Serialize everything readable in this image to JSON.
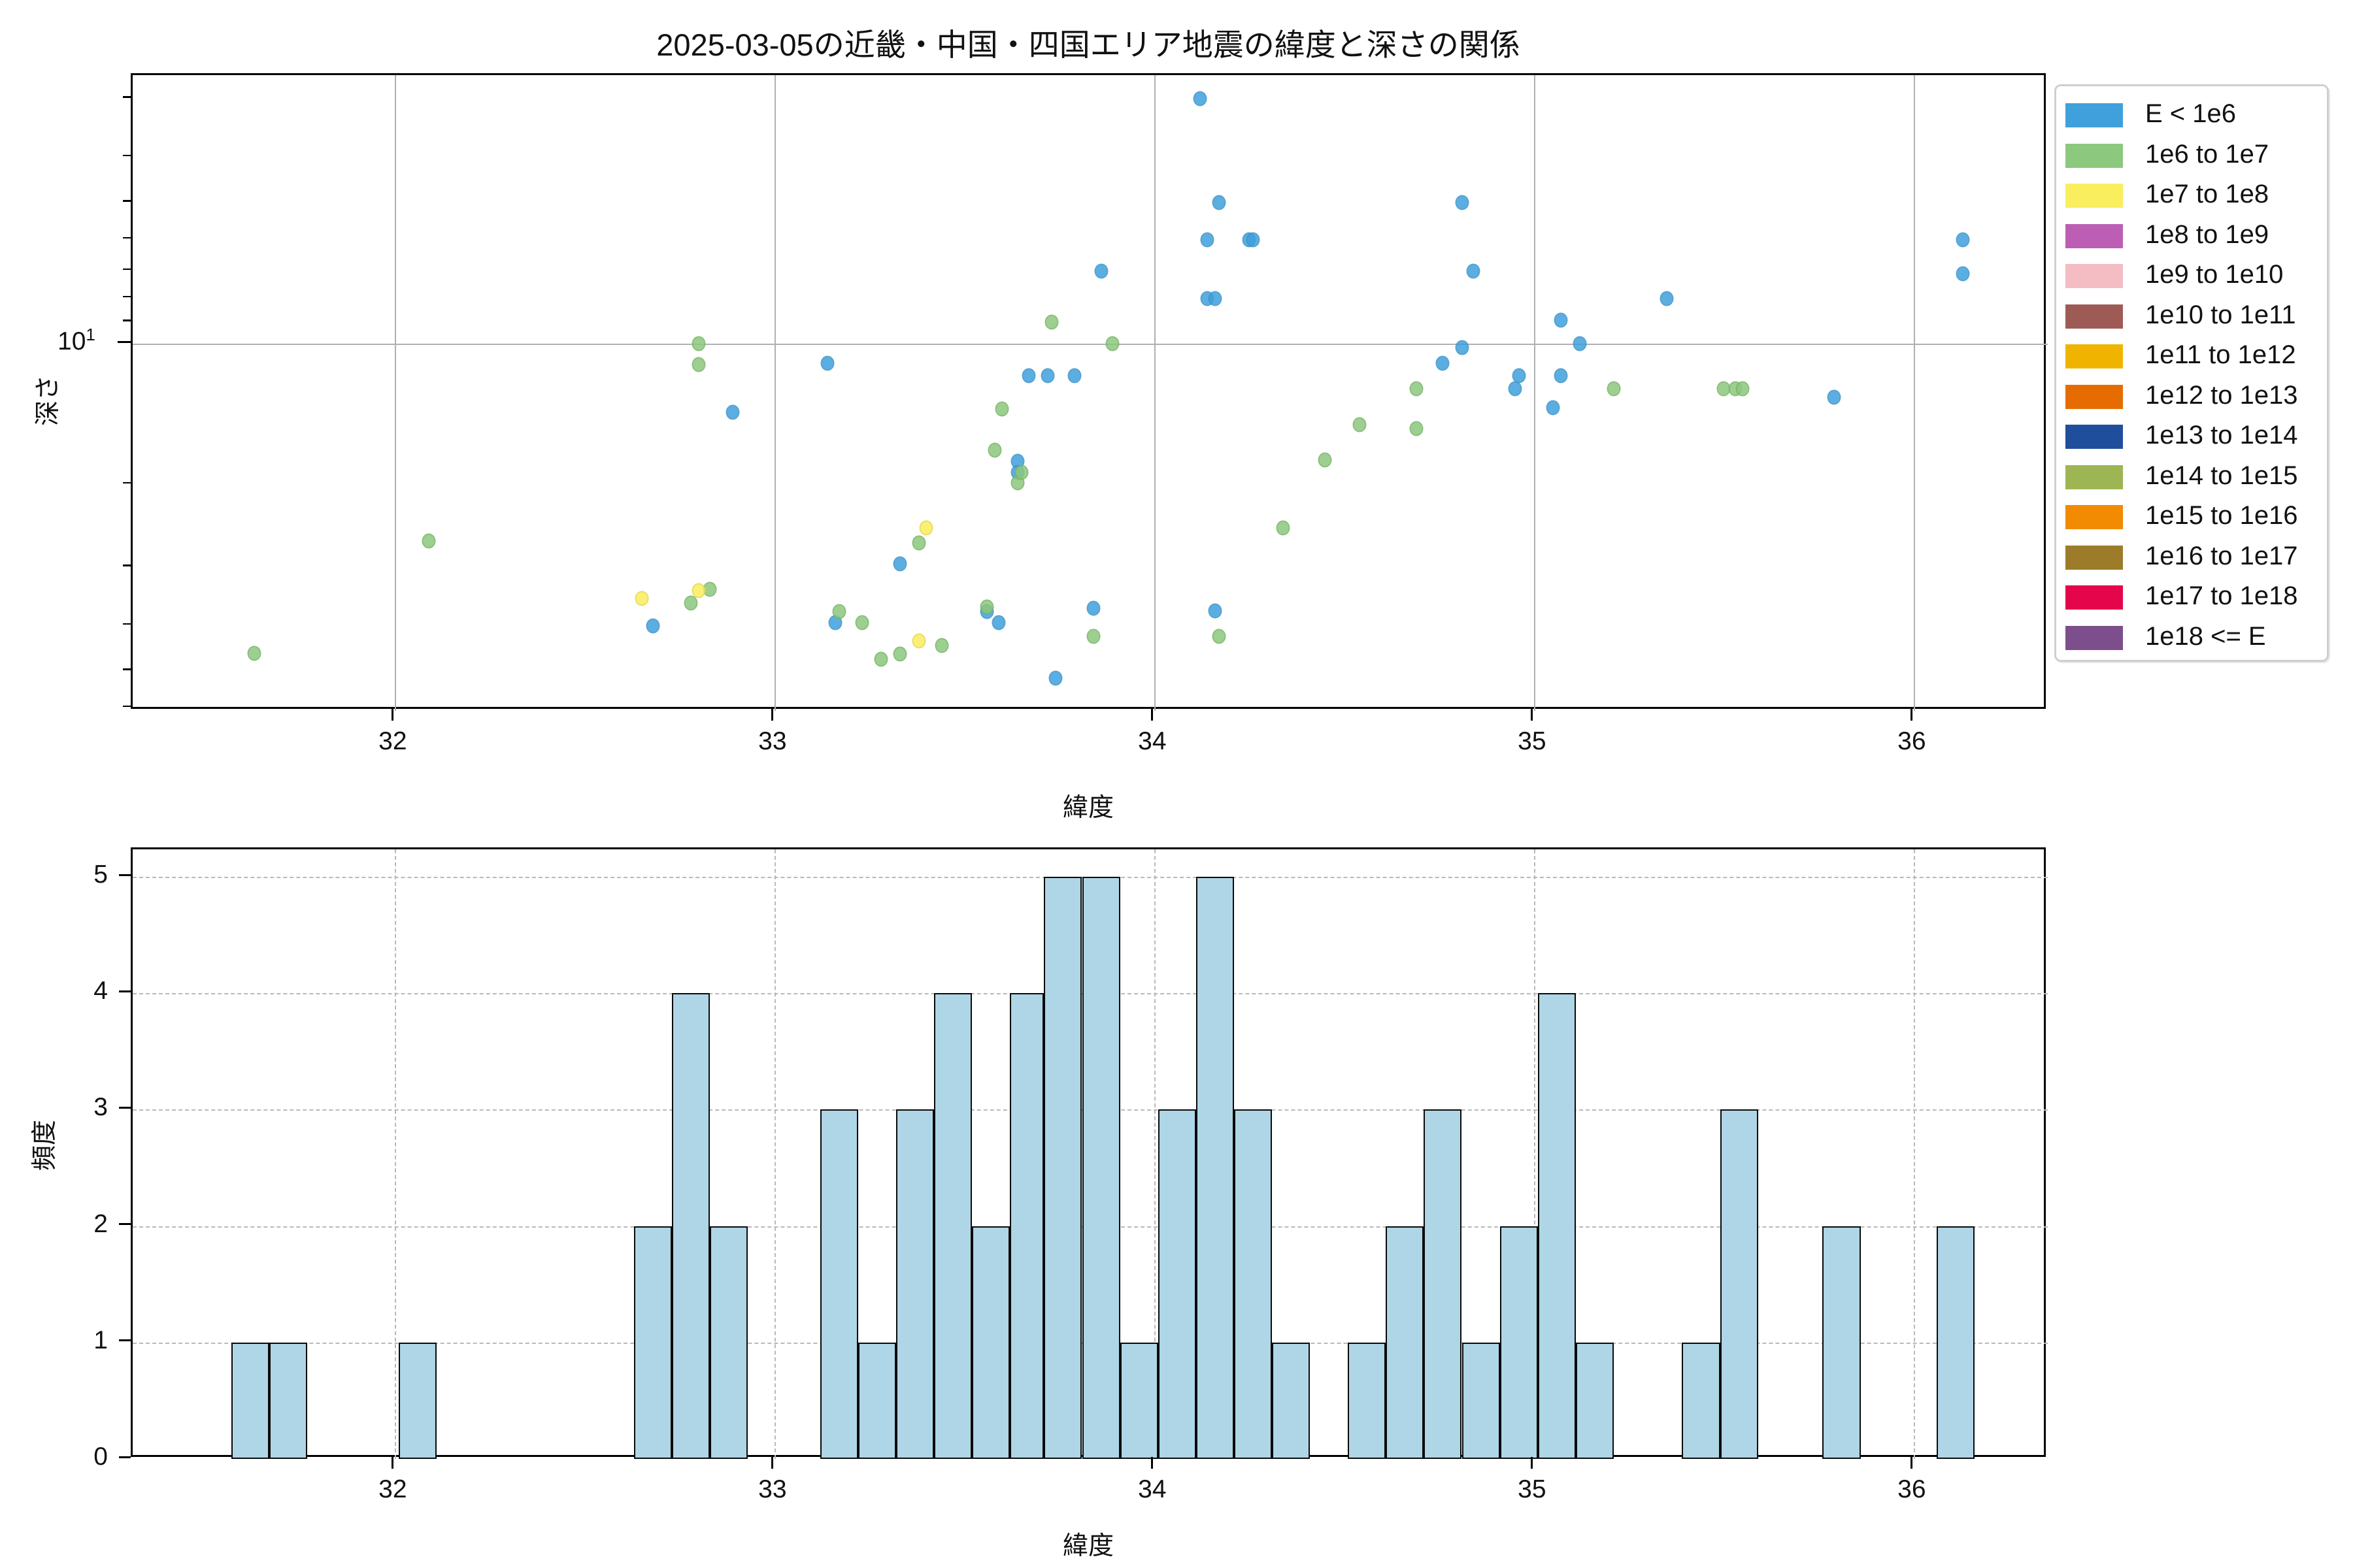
{
  "figure": {
    "title": "2025-03-05の近畿・中国・四国エリア地震の緯度と深さの関係"
  },
  "legend": {
    "entries": [
      {
        "label": "E < 1e6",
        "color": "#3FA0DC"
      },
      {
        "label": "1e6 to 1e7",
        "color": "#8CC87D"
      },
      {
        "label": "1e7 to 1e8",
        "color": "#F9EE5E"
      },
      {
        "label": "1e8 to 1e9",
        "color": "#BC5FB4"
      },
      {
        "label": "1e9 to 1e10",
        "color": "#F4BDC3"
      },
      {
        "label": "1e10 to 1e11",
        "color": "#9E5B55"
      },
      {
        "label": "1e11 to 1e12",
        "color": "#F0B400"
      },
      {
        "label": "1e12 to 1e13",
        "color": "#E66C02"
      },
      {
        "label": "1e13 to 1e14",
        "color": "#1F4E9C"
      },
      {
        "label": "1e14 to 1e15",
        "color": "#9EB554"
      },
      {
        "label": "1e15 to 1e16",
        "color": "#F28A02"
      },
      {
        "label": "1e16 to 1e17",
        "color": "#9C7C29"
      },
      {
        "label": "1e17 to 1e18",
        "color": "#E5054A"
      },
      {
        "label": "1e18 <= E",
        "color": "#7D4E8C"
      }
    ]
  },
  "chart_data": [
    {
      "type": "scatter",
      "title": "2025-03-05の近畿・中国・四国エリア地震の緯度と深さの関係",
      "xlabel": "緯度",
      "ylabel": "深さ",
      "yscale": "log",
      "y_inverted": true,
      "xticks": [
        32,
        33,
        34,
        35,
        36
      ],
      "xlim": [
        31.31,
        36.35
      ],
      "depth_range_top_to_bottom": [
        2.7,
        60.8
      ],
      "ytick_base": "10",
      "ytick_exp": "1",
      "y_minor_tick_depths": [
        3,
        4,
        5,
        6,
        7,
        8,
        9,
        20,
        30,
        40,
        50,
        60
      ],
      "grid": "on",
      "legend_position": "outside-right",
      "series": [
        {
          "name": "E < 1e6",
          "color": "#3FA0DC",
          "edge_color": "#3D93C8",
          "points": [
            [
              32.68,
              40.0
            ],
            [
              32.89,
              14.0
            ],
            [
              33.14,
              11.0
            ],
            [
              33.16,
              39.4
            ],
            [
              33.33,
              29.5
            ],
            [
              33.56,
              37.3
            ],
            [
              33.59,
              39.4
            ],
            [
              33.64,
              17.8
            ],
            [
              33.64,
              18.8
            ],
            [
              33.67,
              11.7
            ],
            [
              33.72,
              11.7
            ],
            [
              33.79,
              11.7
            ],
            [
              33.74,
              51.7
            ],
            [
              33.84,
              36.7
            ],
            [
              33.86,
              7.0
            ],
            [
              34.12,
              3.0
            ],
            [
              34.14,
              6.0
            ],
            [
              34.14,
              8.0
            ],
            [
              34.16,
              8.0
            ],
            [
              34.16,
              37.2
            ],
            [
              34.17,
              5.0
            ],
            [
              34.25,
              6.0
            ],
            [
              34.26,
              6.0
            ],
            [
              34.76,
              11.0
            ],
            [
              34.81,
              5.0
            ],
            [
              34.81,
              10.2
            ],
            [
              34.84,
              7.0
            ],
            [
              34.95,
              12.5
            ],
            [
              34.96,
              11.7
            ],
            [
              35.05,
              13.7
            ],
            [
              35.07,
              8.9
            ],
            [
              35.07,
              11.7
            ],
            [
              35.12,
              10.0
            ],
            [
              35.35,
              8.0
            ],
            [
              35.79,
              13.0
            ],
            [
              36.13,
              6.0
            ],
            [
              36.13,
              7.1
            ]
          ]
        },
        {
          "name": "1e6 to 1e7",
          "color": "#8CC87D",
          "edge_color": "#79B468",
          "points": [
            [
              31.63,
              45.8
            ],
            [
              32.09,
              26.4
            ],
            [
              32.78,
              35.8
            ],
            [
              32.8,
              10.0
            ],
            [
              32.8,
              11.1
            ],
            [
              32.83,
              33.5
            ],
            [
              33.17,
              37.3
            ],
            [
              33.23,
              39.4
            ],
            [
              33.28,
              47.1
            ],
            [
              33.33,
              46.0
            ],
            [
              33.38,
              26.6
            ],
            [
              33.44,
              44.1
            ],
            [
              33.56,
              36.5
            ],
            [
              33.58,
              16.9
            ],
            [
              33.6,
              13.8
            ],
            [
              33.64,
              19.8
            ],
            [
              33.65,
              18.8
            ],
            [
              33.73,
              9.0
            ],
            [
              33.84,
              42.2
            ],
            [
              33.89,
              10.0
            ],
            [
              34.17,
              42.2
            ],
            [
              34.34,
              24.7
            ],
            [
              34.45,
              17.7
            ],
            [
              34.54,
              14.9
            ],
            [
              34.69,
              12.5
            ],
            [
              34.69,
              15.2
            ],
            [
              35.21,
              12.5
            ],
            [
              35.5,
              12.5
            ],
            [
              35.53,
              12.5
            ],
            [
              35.55,
              12.5
            ]
          ]
        },
        {
          "name": "1e7 to 1e8",
          "color": "#F9EE5E",
          "edge_color": "#E5D94A",
          "points": [
            [
              32.65,
              35.0
            ],
            [
              32.8,
              33.7
            ],
            [
              33.38,
              43.1
            ],
            [
              33.4,
              24.7
            ]
          ]
        }
      ]
    },
    {
      "type": "bar",
      "xlabel": "緯度",
      "ylabel": "頻度",
      "xticks": [
        32,
        33,
        34,
        35,
        36
      ],
      "yticks": [
        0,
        1,
        2,
        3,
        4,
        5
      ],
      "xlim": [
        31.31,
        36.35
      ],
      "ylim": [
        0,
        5.24
      ],
      "grid": "dashed",
      "bar_color": "#AED6E6",
      "bar_edge_color": "#0A0A0A",
      "bars": [
        {
          "x0": 31.57,
          "x1": 31.67,
          "count": 1
        },
        {
          "x0": 31.67,
          "x1": 31.77,
          "count": 1
        },
        {
          "x0": 32.01,
          "x1": 32.11,
          "count": 1
        },
        {
          "x0": 32.63,
          "x1": 32.73,
          "count": 2
        },
        {
          "x0": 32.73,
          "x1": 32.83,
          "count": 4
        },
        {
          "x0": 32.83,
          "x1": 32.93,
          "count": 2
        },
        {
          "x0": 33.12,
          "x1": 33.22,
          "count": 3
        },
        {
          "x0": 33.22,
          "x1": 33.32,
          "count": 1
        },
        {
          "x0": 33.32,
          "x1": 33.42,
          "count": 3
        },
        {
          "x0": 33.42,
          "x1": 33.52,
          "count": 4
        },
        {
          "x0": 33.52,
          "x1": 33.62,
          "count": 2
        },
        {
          "x0": 33.62,
          "x1": 33.71,
          "count": 4
        },
        {
          "x0": 33.71,
          "x1": 33.81,
          "count": 5
        },
        {
          "x0": 33.81,
          "x1": 33.91,
          "count": 5
        },
        {
          "x0": 33.91,
          "x1": 34.01,
          "count": 1
        },
        {
          "x0": 34.01,
          "x1": 34.11,
          "count": 3
        },
        {
          "x0": 34.11,
          "x1": 34.21,
          "count": 5
        },
        {
          "x0": 34.21,
          "x1": 34.31,
          "count": 3
        },
        {
          "x0": 34.31,
          "x1": 34.41,
          "count": 1
        },
        {
          "x0": 34.51,
          "x1": 34.61,
          "count": 1
        },
        {
          "x0": 34.61,
          "x1": 34.71,
          "count": 2
        },
        {
          "x0": 34.71,
          "x1": 34.81,
          "count": 3
        },
        {
          "x0": 34.81,
          "x1": 34.91,
          "count": 1
        },
        {
          "x0": 34.91,
          "x1": 35.01,
          "count": 2
        },
        {
          "x0": 35.01,
          "x1": 35.11,
          "count": 4
        },
        {
          "x0": 35.11,
          "x1": 35.21,
          "count": 1
        },
        {
          "x0": 35.39,
          "x1": 35.49,
          "count": 1
        },
        {
          "x0": 35.49,
          "x1": 35.59,
          "count": 3
        },
        {
          "x0": 35.76,
          "x1": 35.86,
          "count": 2
        },
        {
          "x0": 36.06,
          "x1": 36.16,
          "count": 2
        }
      ]
    }
  ]
}
